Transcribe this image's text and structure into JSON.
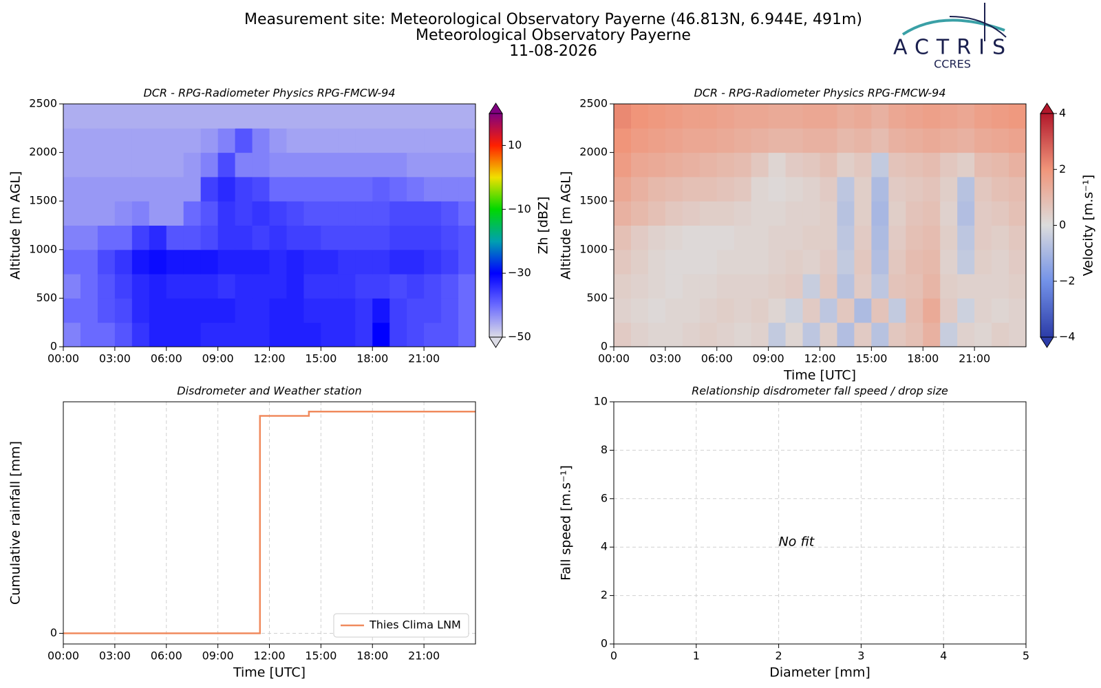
{
  "header": {
    "lines": [
      "Measurement site: Meteorological Observatory Payerne (46.813N, 6.944E, 491m)",
      "Meteorological Observatory Payerne",
      "11-08-2026"
    ],
    "logo": "ACTRIS",
    "logo_sub": "CCRES"
  },
  "chart_data": [
    {
      "type": "heatmap",
      "title": "DCR - RPG-Radiometer Physics RPG-FMCW-94",
      "y_label": "Altitude [m AGL]",
      "xlim": [
        0,
        24
      ],
      "xticks": [
        {
          "value": 0,
          "label": "00:00"
        },
        {
          "value": 3,
          "label": "03:00"
        },
        {
          "value": 6,
          "label": "06:00"
        },
        {
          "value": 9,
          "label": "09:00"
        },
        {
          "value": 12,
          "label": "12:00"
        },
        {
          "value": 15,
          "label": "15:00"
        },
        {
          "value": 18,
          "label": "18:00"
        },
        {
          "value": 21,
          "label": "21:00"
        }
      ],
      "ylim": [
        0,
        2500
      ],
      "yticks": [
        0,
        500,
        1000,
        1500,
        2000,
        2500
      ],
      "grid": true,
      "xbins": [
        0,
        1,
        2,
        3,
        4,
        5,
        6,
        7,
        8,
        9,
        10,
        11,
        12,
        13,
        14,
        15,
        16,
        17,
        18,
        19,
        20,
        21,
        22,
        23,
        24
      ],
      "ybins": [
        0,
        250,
        500,
        750,
        1000,
        1250,
        1500,
        1750,
        2000,
        2250,
        2500
      ],
      "z": [
        [
          -42,
          -40,
          -40,
          -38,
          -35,
          -33,
          -33,
          -33,
          -34,
          -34,
          -34,
          -34,
          -33,
          -33,
          -33,
          -34,
          -34,
          -35,
          -30,
          -36,
          -37,
          -38,
          -38,
          -40
        ],
        [
          -40,
          -40,
          -38,
          -37,
          -34,
          -33,
          -33,
          -33,
          -33,
          -33,
          -34,
          -34,
          -33,
          -33,
          -34,
          -34,
          -34,
          -35,
          -32,
          -36,
          -37,
          -37,
          -38,
          -40
        ],
        [
          -42,
          -40,
          -38,
          -36,
          -34,
          -33,
          -34,
          -34,
          -34,
          -35,
          -34,
          -34,
          -34,
          -33,
          -35,
          -35,
          -35,
          -36,
          -36,
          -37,
          -36,
          -37,
          -38,
          -40
        ],
        [
          -40,
          -40,
          -37,
          -35,
          -32,
          -31,
          -32,
          -32,
          -32,
          -33,
          -33,
          -33,
          -34,
          -33,
          -34,
          -34,
          -35,
          -35,
          -35,
          -34,
          -34,
          -35,
          -36,
          -38
        ],
        [
          -42,
          -42,
          -40,
          -40,
          -36,
          -34,
          -38,
          -38,
          -37,
          -35,
          -35,
          -36,
          -35,
          -36,
          -36,
          -37,
          -37,
          -37,
          -37,
          -36,
          -36,
          -36,
          -37,
          -38
        ],
        [
          -44,
          -44,
          -44,
          -43,
          -42,
          -44,
          -44,
          -40,
          -38,
          -35,
          -36,
          -35,
          -36,
          -37,
          -38,
          -38,
          -38,
          -38,
          -38,
          -37,
          -37,
          -37,
          -38,
          -40
        ],
        [
          -44,
          -44,
          -44,
          -44,
          -44,
          -44,
          -44,
          -44,
          -36,
          -34,
          -36,
          -37,
          -40,
          -40,
          -40,
          -40,
          -40,
          -40,
          -39,
          -40,
          -41,
          -42,
          -42,
          -42
        ],
        [
          -45,
          -45,
          -45,
          -45,
          -45,
          -45,
          -45,
          -44,
          -42,
          -37,
          -42,
          -42,
          -43,
          -43,
          -43,
          -43,
          -43,
          -43,
          -43,
          -43,
          -44,
          -44,
          -44,
          -44
        ],
        [
          -45,
          -45,
          -45,
          -45,
          -45,
          -45,
          -45,
          -45,
          -44,
          -42,
          -38,
          -42,
          -44,
          -45,
          -45,
          -45,
          -45,
          -45,
          -45,
          -45,
          -45,
          -45,
          -45,
          -45
        ],
        [
          -46,
          -46,
          -46,
          -46,
          -46,
          -46,
          -46,
          -46,
          -46,
          -46,
          -46,
          -46,
          -46,
          -46,
          -46,
          -46,
          -46,
          -46,
          -46,
          -46,
          -46,
          -46,
          -46,
          -46
        ]
      ],
      "colorbar": {
        "label": "Zh [dBZ]",
        "lim": [
          -50,
          20
        ],
        "ticks": [
          {
            "value": -50,
            "label": "−50"
          },
          {
            "value": -30,
            "label": "−30"
          },
          {
            "value": -10,
            "label": "−10"
          },
          10
        ],
        "colors": [
          "#dcdce6",
          "#6a6aff",
          "#0000ff",
          "#00a0b0",
          "#00d800",
          "#f0e000",
          "#ff2000",
          "#800080"
        ]
      }
    },
    {
      "type": "heatmap",
      "title": "DCR - RPG-Radiometer Physics RPG-FMCW-94",
      "y_label": "Altitude [m AGL]",
      "x_label": "Time [UTC]",
      "xlim": [
        0,
        24
      ],
      "xticks": [
        {
          "value": 0,
          "label": "00:00"
        },
        {
          "value": 3,
          "label": "03:00"
        },
        {
          "value": 6,
          "label": "06:00"
        },
        {
          "value": 9,
          "label": "09:00"
        },
        {
          "value": 12,
          "label": "12:00"
        },
        {
          "value": 15,
          "label": "15:00"
        },
        {
          "value": 18,
          "label": "18:00"
        },
        {
          "value": 21,
          "label": "21:00"
        }
      ],
      "ylim": [
        0,
        2500
      ],
      "yticks": [
        0,
        500,
        1000,
        1500,
        2000,
        2500
      ],
      "grid": true,
      "xbins": [
        0,
        1,
        2,
        3,
        4,
        5,
        6,
        7,
        8,
        9,
        10,
        11,
        12,
        13,
        14,
        15,
        16,
        17,
        18,
        19,
        20,
        21,
        22,
        23,
        24
      ],
      "ybins": [
        0,
        250,
        500,
        750,
        1000,
        1250,
        1500,
        1750,
        2000,
        2250,
        2500
      ],
      "z": [
        [
          0.5,
          0.3,
          0.2,
          0.2,
          0.3,
          0.4,
          0.3,
          0.2,
          0.3,
          -0.5,
          0.2,
          -0.6,
          0.4,
          -0.8,
          0.5,
          -0.7,
          0.6,
          0.8,
          1.2,
          -0.4,
          0.3,
          0.2,
          0.4,
          0.3
        ],
        [
          0.3,
          0.2,
          0.1,
          0.2,
          0.2,
          0.3,
          0.4,
          0.3,
          0.4,
          0.2,
          -0.3,
          0.5,
          -0.6,
          0.6,
          -0.9,
          0.7,
          -0.5,
          0.9,
          1.4,
          0.5,
          -0.3,
          0.3,
          0.2,
          0.3
        ],
        [
          0.4,
          0.3,
          0.2,
          0.1,
          0.2,
          0.2,
          0.3,
          0.3,
          0.3,
          0.4,
          0.5,
          -0.4,
          0.6,
          -0.7,
          0.5,
          -0.6,
          0.7,
          0.8,
          1.1,
          0.4,
          0.3,
          0.3,
          0.3,
          0.4
        ],
        [
          0.6,
          0.4,
          0.2,
          0.1,
          0.1,
          0.1,
          0.2,
          0.2,
          0.2,
          0.3,
          0.4,
          0.3,
          0.5,
          -0.5,
          0.6,
          -0.8,
          0.6,
          0.9,
          1.0,
          0.3,
          -0.5,
          0.4,
          0.3,
          0.5
        ],
        [
          0.8,
          0.5,
          0.3,
          0.2,
          0.1,
          0.1,
          0.1,
          0.2,
          0.2,
          0.3,
          0.3,
          0.4,
          0.4,
          -0.6,
          0.5,
          -0.9,
          0.5,
          0.8,
          0.9,
          0.4,
          -0.6,
          0.5,
          0.4,
          0.6
        ],
        [
          1.2,
          1.0,
          0.8,
          0.6,
          0.5,
          0.4,
          0.4,
          0.3,
          0.2,
          0.2,
          0.3,
          0.3,
          0.4,
          -0.7,
          0.4,
          -1.0,
          0.4,
          0.7,
          0.8,
          0.3,
          -0.8,
          0.5,
          0.6,
          0.8
        ],
        [
          1.5,
          1.2,
          1.0,
          0.9,
          0.8,
          0.8,
          0.7,
          0.6,
          0.2,
          0.1,
          0.2,
          0.3,
          0.5,
          -0.6,
          0.4,
          -0.9,
          0.5,
          0.6,
          0.7,
          0.4,
          -0.7,
          0.6,
          0.8,
          0.9
        ],
        [
          1.8,
          1.5,
          1.4,
          1.3,
          1.2,
          1.1,
          1.0,
          0.9,
          0.6,
          0.2,
          0.5,
          0.6,
          0.8,
          0.4,
          0.6,
          -0.5,
          0.7,
          0.8,
          0.9,
          0.6,
          0.4,
          0.9,
          1.0,
          1.2
        ],
        [
          2.0,
          1.8,
          1.7,
          1.6,
          1.5,
          1.5,
          1.4,
          1.3,
          1.2,
          1.1,
          1.1,
          1.2,
          1.2,
          1.0,
          1.1,
          0.9,
          1.2,
          1.3,
          1.4,
          1.3,
          1.2,
          1.4,
          1.5,
          1.6
        ],
        [
          2.2,
          2.0,
          1.9,
          1.8,
          1.7,
          1.7,
          1.6,
          1.5,
          1.5,
          1.4,
          1.4,
          1.5,
          1.5,
          1.3,
          1.4,
          1.2,
          1.5,
          1.6,
          1.7,
          1.6,
          1.5,
          1.7,
          1.8,
          1.9
        ]
      ],
      "colorbar": {
        "label": "Velocity [m.s⁻¹]",
        "lim": [
          -4,
          4
        ],
        "ticks": [
          {
            "value": -4,
            "label": "−4"
          },
          {
            "value": -2,
            "label": "−2"
          },
          0,
          2,
          4
        ],
        "colors": [
          "#2c3ca8",
          "#7392e8",
          "#dcdcdc",
          "#f0957a",
          "#b2182b"
        ]
      }
    },
    {
      "type": "line",
      "title": "Disdrometer and Weather station",
      "y_label": "Cumulative rainfall [mm]",
      "x_label": "Time [UTC]",
      "xlim": [
        0,
        24
      ],
      "xticks": [
        {
          "value": 0,
          "label": "00:00"
        },
        {
          "value": 3,
          "label": "03:00"
        },
        {
          "value": 6,
          "label": "06:00"
        },
        {
          "value": 9,
          "label": "09:00"
        },
        {
          "value": 12,
          "label": "12:00"
        },
        {
          "value": 15,
          "label": "15:00"
        },
        {
          "value": 18,
          "label": "18:00"
        },
        {
          "value": 21,
          "label": "21:00"
        }
      ],
      "ylim": [
        -0.049,
        1.065
      ],
      "yticks": [
        0
      ],
      "grid": true,
      "legend": "lower right",
      "x": [
        0,
        11.45,
        11.45,
        14.3,
        14.3,
        24
      ],
      "series": [
        {
          "name": "Thies Clima LNM",
          "color": "#f08a5d",
          "values": [
            0,
            0,
            1.0,
            1.0,
            1.02,
            1.02
          ]
        }
      ]
    },
    {
      "type": "scatter",
      "title": "Relationship disdrometer fall speed / drop size",
      "y_label": "Fall speed [m.s⁻¹]",
      "x_label": "Diameter [mm]",
      "xlim": [
        0,
        5
      ],
      "xticks": [
        0,
        1,
        2,
        3,
        4,
        5
      ],
      "ylim": [
        0,
        10
      ],
      "yticks": [
        0,
        2,
        4,
        6,
        8,
        10
      ],
      "grid": true,
      "annotation": "No fit"
    }
  ]
}
